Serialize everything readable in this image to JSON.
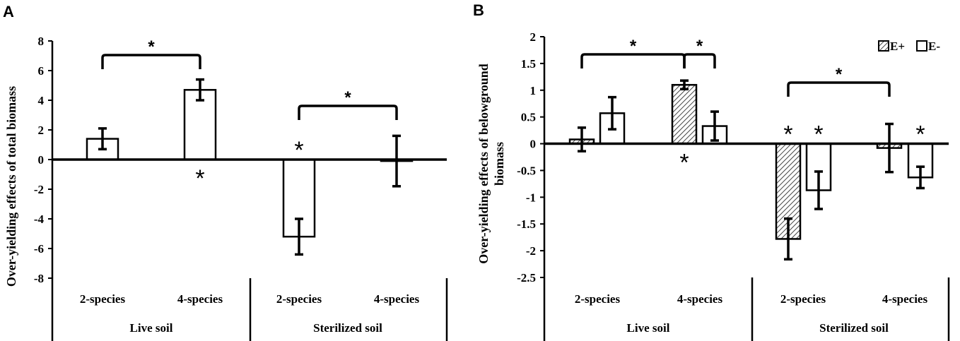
{
  "chart_data": [
    {
      "type": "bar",
      "panel_label": "A",
      "ylabel": "Over-yielding effects of total biomass",
      "ylim": [
        -8,
        8
      ],
      "yticks": [
        "8",
        "6",
        "4",
        "2",
        "0",
        "-2",
        "-4",
        "-6",
        "-8"
      ],
      "groups": [
        {
          "label": "Live soil",
          "categories": [
            "2-species",
            "4-species"
          ]
        },
        {
          "label": "Sterilized soil",
          "categories": [
            "2-species",
            "4-species"
          ]
        }
      ],
      "series": [
        {
          "name": "total",
          "fill": "open",
          "values": [
            1.4,
            4.7,
            -5.2,
            -0.1
          ],
          "errors": [
            0.7,
            0.7,
            1.2,
            1.7
          ]
        }
      ],
      "sig_brackets": [
        {
          "from": 0,
          "to": 1,
          "label": "*"
        },
        {
          "from": 2,
          "to": 3,
          "label": "*"
        }
      ],
      "stars": [
        {
          "index": 1,
          "position": "below",
          "label": "*"
        },
        {
          "index": 2,
          "position": "above",
          "label": "*"
        }
      ]
    },
    {
      "type": "bar",
      "panel_label": "B",
      "ylabel_lines": [
        "Over-yielding effects of belowground",
        "biomass"
      ],
      "ylim": [
        -2.5,
        2
      ],
      "yticks": [
        "2",
        "1.5",
        "1",
        "0.5",
        "0",
        "-0.5",
        "-1",
        "-1.5",
        "-2",
        "-2.5"
      ],
      "groups": [
        {
          "label": "Live soil",
          "categories": [
            "2-species",
            "4-species"
          ]
        },
        {
          "label": "Sterilized soil",
          "categories": [
            "2-species",
            "4-species"
          ]
        }
      ],
      "legend": [
        {
          "name": "E+",
          "fill": "hatched"
        },
        {
          "name": "E-",
          "fill": "open"
        }
      ],
      "legend_position": "top-right",
      "series": [
        {
          "name": "E+",
          "values": [
            0.08,
            1.1,
            -1.78,
            -0.08
          ],
          "errors": [
            0.22,
            0.08,
            0.38,
            0.45
          ]
        },
        {
          "name": "E-",
          "values": [
            0.57,
            0.33,
            -0.87,
            -0.63
          ],
          "errors": [
            0.3,
            0.27,
            0.35,
            0.2
          ]
        }
      ],
      "sig_brackets": [
        {
          "from": "E+:0",
          "to": "E+:1",
          "label": "*"
        },
        {
          "from": "E+:1",
          "to": "E-:1",
          "label": "*"
        },
        {
          "from": "E+:2",
          "to": "E+:3",
          "label": "*"
        }
      ],
      "stars": [
        {
          "series": "E+",
          "index": 1,
          "position": "below",
          "label": "*"
        },
        {
          "series": "E+",
          "index": 2,
          "position": "above",
          "label": "*"
        },
        {
          "series": "E-",
          "index": 2,
          "position": "above",
          "label": "*"
        },
        {
          "series": "E-",
          "index": 3,
          "position": "above",
          "label": "*"
        }
      ]
    }
  ]
}
